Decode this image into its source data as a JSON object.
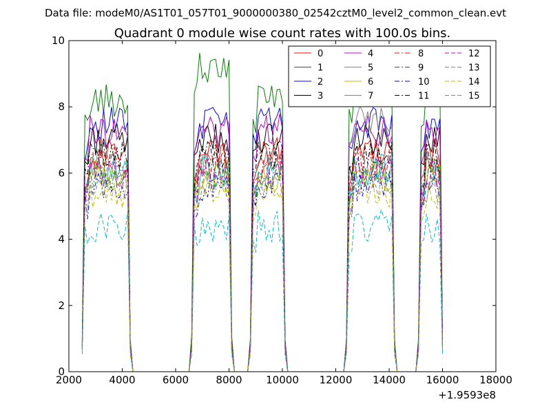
{
  "suptitle": "Data file: modeM0/AS1T01_057T01_9000000380_02542cztM0_level2_common_clean.evt",
  "chart_data": {
    "type": "line",
    "title": "Quadrant 0 module wise count rates with 100.0s bins.",
    "xlabel": "",
    "ylabel": "",
    "x_offset_label": "+1.9593e8",
    "xlim": [
      2000,
      18000
    ],
    "ylim": [
      0,
      10
    ],
    "x_ticks": [
      2000,
      4000,
      6000,
      8000,
      10000,
      12000,
      14000,
      16000,
      18000
    ],
    "x_tick_labels": [
      "2000",
      "4000",
      "6000",
      "8000",
      "10000",
      "12000",
      "14000",
      "16000",
      "18000"
    ],
    "y_ticks": [
      0,
      2,
      4,
      6,
      8,
      10
    ],
    "y_tick_labels": [
      "0",
      "2",
      "4",
      "6",
      "8",
      "10"
    ],
    "grid": false,
    "legend_position": "top-right",
    "legend_columns": 4,
    "segments": [
      {
        "start": 2600,
        "end": 4200
      },
      {
        "start": 6700,
        "end": 8000
      },
      {
        "start": 8900,
        "end": 10000
      },
      {
        "start": 12500,
        "end": 14100
      },
      {
        "start": 15200,
        "end": 15900
      }
    ],
    "series": [
      {
        "name": "0",
        "color": "#ff0000",
        "dash": "solid",
        "level": 6.6
      },
      {
        "name": "1",
        "color": "#008000",
        "dash": "solid",
        "level": 8.2
      },
      {
        "name": "2",
        "color": "#0000ff",
        "dash": "solid",
        "level": 7.5
      },
      {
        "name": "3",
        "color": "#000000",
        "dash": "solid",
        "level": 7.0
      },
      {
        "name": "4",
        "color": "#bf00bf",
        "dash": "solid",
        "level": 7.3
      },
      {
        "name": "5",
        "color": "#00bfbf",
        "dash": "solid",
        "level": 6.1
      },
      {
        "name": "6",
        "color": "#bfbf00",
        "dash": "solid",
        "level": 5.9
      },
      {
        "name": "7",
        "color": "#808080",
        "dash": "solid",
        "level": 6.3
      },
      {
        "name": "8",
        "color": "#ff0000",
        "dash": "dashdot",
        "level": 6.3
      },
      {
        "name": "9",
        "color": "#008000",
        "dash": "dashdot",
        "level": 6.0
      },
      {
        "name": "10",
        "color": "#0000ff",
        "dash": "dashdot",
        "level": 5.6
      },
      {
        "name": "11",
        "color": "#000000",
        "dash": "dashdot",
        "level": 6.5
      },
      {
        "name": "12",
        "color": "#bf00bf",
        "dash": "dashed",
        "level": 6.0
      },
      {
        "name": "13",
        "color": "#00bfbf",
        "dash": "dashed",
        "level": 4.4
      },
      {
        "name": "14",
        "color": "#bfbf00",
        "dash": "dashed",
        "level": 5.4
      },
      {
        "name": "15",
        "color": "#808080",
        "dash": "dashed",
        "level": 5.6
      }
    ],
    "segment_boosts": {
      "1": [
        0,
        1.0,
        0.2,
        0.3,
        0.2
      ],
      "7": [
        0,
        0,
        0,
        1.4,
        0
      ]
    }
  }
}
